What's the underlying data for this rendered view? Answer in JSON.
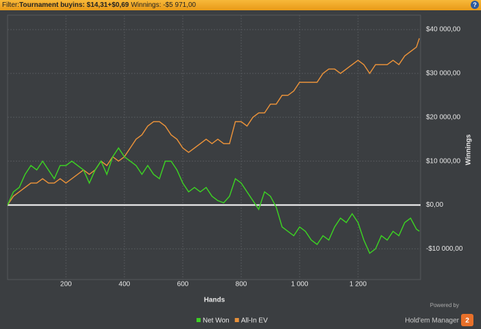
{
  "header": {
    "filter_label": "Filter:",
    "filter_value": "Tournament buyins: $14,31+$0,69",
    "winnings": "Winnings: -$5 971,00"
  },
  "branding": {
    "powered_by": "Powered by",
    "product": "Hold'em Manager",
    "badge": "2"
  },
  "chart_data": {
    "type": "line",
    "x_label": "Hands",
    "y_label": "Winnings",
    "x": [
      0,
      20,
      40,
      60,
      80,
      100,
      120,
      140,
      160,
      180,
      200,
      220,
      240,
      260,
      280,
      300,
      320,
      340,
      360,
      380,
      400,
      420,
      440,
      460,
      480,
      500,
      520,
      540,
      560,
      580,
      600,
      620,
      640,
      660,
      680,
      700,
      720,
      740,
      760,
      780,
      800,
      820,
      840,
      860,
      880,
      900,
      920,
      940,
      960,
      980,
      1000,
      1020,
      1040,
      1060,
      1080,
      1100,
      1120,
      1140,
      1160,
      1180,
      1200,
      1220,
      1240,
      1260,
      1280,
      1300,
      1320,
      1340,
      1360,
      1380,
      1400,
      1410
    ],
    "series": [
      {
        "name": "Net Won",
        "color": "#3ccf24",
        "values": [
          0,
          3000,
          4000,
          7000,
          9000,
          8000,
          10000,
          8000,
          6000,
          9000,
          9000,
          10000,
          9000,
          8000,
          5000,
          8000,
          10000,
          7000,
          11000,
          13000,
          11000,
          10000,
          9000,
          7000,
          9000,
          7000,
          6000,
          10000,
          10000,
          8000,
          5000,
          3000,
          4000,
          3000,
          4000,
          2000,
          1000,
          500,
          2000,
          6000,
          5000,
          3000,
          1000,
          -1000,
          3000,
          2000,
          -500,
          -5000,
          -6000,
          -7000,
          -5000,
          -6000,
          -8000,
          -9000,
          -7000,
          -8000,
          -5000,
          -3000,
          -4000,
          -2000,
          -4000,
          -8000,
          -11000,
          -10000,
          -7000,
          -8000,
          -6000,
          -7000,
          -4000,
          -3000,
          -5500,
          -5971
        ]
      },
      {
        "name": "All-In EV",
        "color": "#e8913a",
        "values": [
          0,
          2000,
          3000,
          4000,
          5000,
          5000,
          6000,
          5000,
          5000,
          6000,
          5000,
          6000,
          7000,
          8000,
          7000,
          8000,
          10000,
          9000,
          11000,
          10000,
          11000,
          13000,
          15000,
          16000,
          18000,
          19000,
          19000,
          18000,
          16000,
          15000,
          13000,
          12000,
          13000,
          14000,
          15000,
          14000,
          15000,
          14000,
          14000,
          19000,
          19000,
          18000,
          20000,
          21000,
          21000,
          23000,
          23000,
          25000,
          25000,
          26000,
          28000,
          28000,
          28000,
          28000,
          30000,
          31000,
          31000,
          30000,
          31000,
          32000,
          33000,
          32000,
          30000,
          32000,
          32000,
          32000,
          33000,
          32000,
          34000,
          35000,
          36000,
          38000
        ]
      }
    ],
    "xlim": [
      0,
      1414
    ],
    "xticks": [
      200,
      400,
      600,
      800,
      {
        "value": 1000,
        "label": "1 000"
      },
      {
        "value": 1200,
        "label": "1 200"
      }
    ],
    "ylim": [
      -17000,
      43300
    ],
    "yticks": [
      {
        "value": -10000,
        "label": "-$10 000,00"
      },
      {
        "value": 0,
        "label": "$0,00"
      },
      {
        "value": 10000,
        "label": "$10 000,00"
      },
      {
        "value": 20000,
        "label": "$20 000,00"
      },
      {
        "value": 30000,
        "label": "$30 000,00"
      },
      {
        "value": 40000,
        "label": "$40 000,00"
      }
    ],
    "grid": true,
    "zero_line": true
  }
}
